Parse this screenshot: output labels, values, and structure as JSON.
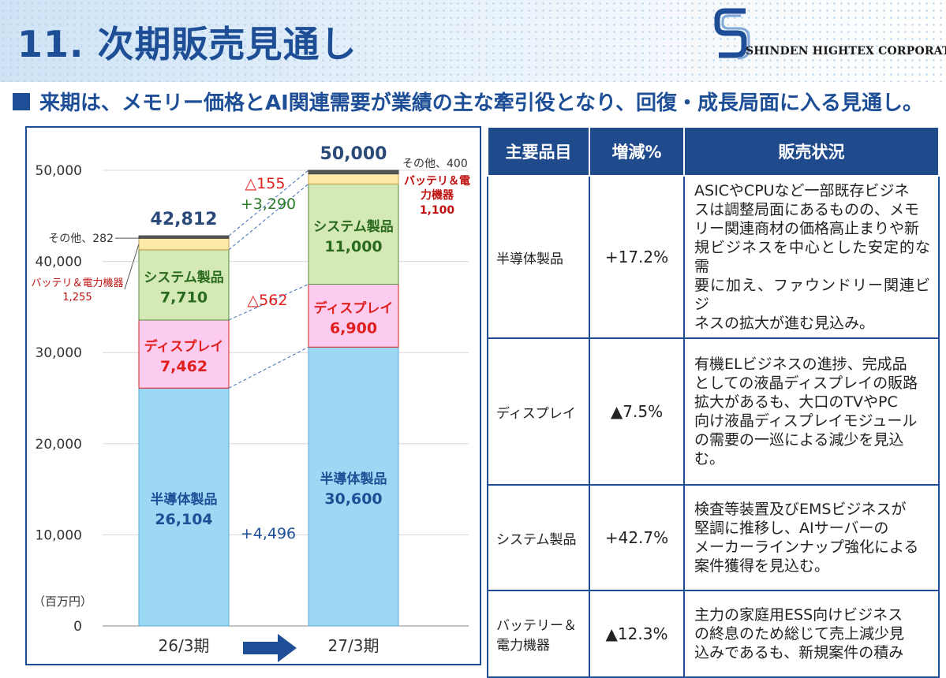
{
  "header": {
    "title": "11. 次期販売見通し",
    "company": "SHINDEN HIGHTEX CORPORATION",
    "subheading": "来期は、メモリー価格とAI関連需要が業績の主な牽引役となり、回復・成長局面に入る見通し。"
  },
  "chart_data": {
    "type": "bar",
    "stacked": true,
    "categories": [
      "26/3期",
      "27/3期"
    ],
    "ylabel": "（百万円）",
    "ylim": [
      0,
      50000
    ],
    "yticks": [
      "0",
      "10,000",
      "20,000",
      "30,000",
      "40,000",
      "50,000"
    ],
    "series": [
      {
        "name": "半導体製品",
        "values": [
          26104,
          30600
        ],
        "color": "#9cd7f3",
        "labels": [
          "26,104",
          "30,600"
        ]
      },
      {
        "name": "ディスプレイ",
        "values": [
          7462,
          6900
        ],
        "color": "#fcccf0",
        "labels": [
          "7,462",
          "6,900"
        ]
      },
      {
        "name": "システム製品",
        "values": [
          7710,
          11000
        ],
        "color": "#d4e9b6",
        "labels": [
          "7,710",
          "11,000"
        ]
      },
      {
        "name": "バッテリ＆電力機器",
        "values": [
          1255,
          1100
        ],
        "color": "#fde9a8",
        "labels": [
          "1,255",
          "1,100"
        ]
      },
      {
        "name": "その他",
        "values": [
          282,
          400
        ],
        "color": "#555555",
        "labels": [
          "282",
          "400"
        ]
      }
    ],
    "totals": [
      "42,812",
      "50,000"
    ],
    "changes": [
      {
        "series": "半導体製品",
        "text": "+4,496",
        "color": "#1e4f96"
      },
      {
        "series": "ディスプレイ",
        "text": "△562",
        "color": "#e0201e"
      },
      {
        "series": "システム製品",
        "text": "+3,290",
        "color": "#2a7a2a"
      },
      {
        "series": "total_top",
        "text": "△155",
        "color": "#e0201e"
      }
    ],
    "callouts": {
      "other_left": "その他、282",
      "battery_left_1": "バッテリ＆電力機器",
      "battery_left_2": "1,255",
      "other_right": "その他、400",
      "battery_right_1": "バッテリ＆電",
      "battery_right_2": "力機器",
      "battery_right_3": "1,100"
    }
  },
  "table": {
    "headers": [
      "主要品目",
      "増減%",
      "販売状況"
    ],
    "rows": [
      {
        "name": [
          "半導体製品"
        ],
        "pct": "+17.2%",
        "desc": [
          "ASICやCPUなど一部既存ビジネ",
          "スは調整局面にあるものの、メモ",
          "リー関連商材の価格高止まりや新",
          "規ビジネスを中心とした安定的な需",
          "要に加え、ファウンドリー関連ビジ",
          "ネスの拡大が進む見込み。"
        ]
      },
      {
        "name": [
          "ディスプレイ"
        ],
        "pct": "▲7.5%",
        "desc": [
          "有機ELビジネスの進捗、完成品",
          "としての液晶ディスプレイの販路",
          "拡大があるも、大口のTVやPC",
          "向け液晶ディスプレイモジュール",
          "の需要の一巡による減少を見込",
          "む。"
        ]
      },
      {
        "name": [
          "システム製品"
        ],
        "pct": "+42.7%",
        "desc": [
          "検査等装置及びEMSビジネスが",
          "堅調に推移し、AIサーバーの",
          "メーカーラインナップ強化による",
          "案件獲得を見込む。"
        ]
      },
      {
        "name": [
          "バッテリー＆",
          "電力機器"
        ],
        "pct": "▲12.3%",
        "desc": [
          "主力の家庭用ESS向けビジネス",
          "の終息のため総じて売上減少見",
          "込みであるも、新規案件の積み"
        ]
      }
    ]
  }
}
